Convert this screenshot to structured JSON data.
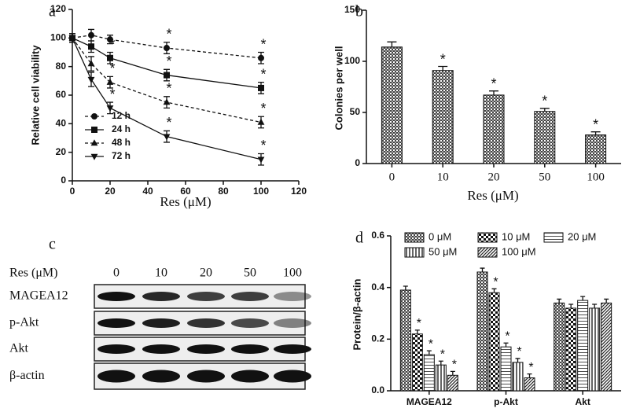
{
  "chart_data": [
    {
      "type": "line",
      "panel_label": "a",
      "x_label": "Res (μM)",
      "y_label": "Relative cell viability",
      "x": [
        0,
        10,
        20,
        50,
        100
      ],
      "xlim": [
        0,
        120
      ],
      "xticks": [
        0,
        20,
        40,
        60,
        80,
        100,
        120
      ],
      "ylim": [
        0,
        120
      ],
      "yticks": [
        0,
        20,
        40,
        60,
        80,
        100,
        120
      ],
      "series": [
        {
          "name": "12 h",
          "color": "#111111",
          "marker": "circle",
          "linestyle": "dashed",
          "values": [
            100,
            102,
            99,
            93,
            86
          ],
          "errors": [
            3,
            4,
            3,
            4,
            4
          ],
          "markers": [
            null,
            null,
            null,
            "*",
            "*"
          ]
        },
        {
          "name": "24 h",
          "color": "#111111",
          "marker": "square",
          "linestyle": "solid",
          "values": [
            100,
            94,
            86,
            74,
            65
          ],
          "errors": [
            3,
            4,
            4,
            4,
            4
          ],
          "markers": [
            null,
            null,
            "*",
            "*",
            "*"
          ]
        },
        {
          "name": "48 h",
          "color": "#111111",
          "marker": "triangle-up",
          "linestyle": "dashed",
          "values": [
            100,
            82,
            69,
            55,
            41
          ],
          "errors": [
            3,
            5,
            4,
            4,
            4
          ],
          "markers": [
            null,
            null,
            "*",
            "*",
            "*"
          ]
        },
        {
          "name": "72 h",
          "color": "#111111",
          "marker": "triangle-down",
          "linestyle": "solid",
          "values": [
            100,
            71,
            51,
            31,
            15
          ],
          "errors": [
            3,
            5,
            4,
            4,
            4
          ],
          "markers": [
            null,
            null,
            "*",
            "*",
            "*"
          ]
        }
      ]
    },
    {
      "type": "bar",
      "panel_label": "b",
      "x_label": "Res (μM)",
      "y_label": "Colonies per well",
      "categories": [
        "0",
        "10",
        "20",
        "50",
        "100"
      ],
      "values": [
        114,
        91,
        67,
        51,
        28
      ],
      "errors": [
        5,
        4,
        4,
        3,
        3
      ],
      "markers": [
        null,
        "*",
        "*",
        "*",
        "*"
      ],
      "color": "#444444",
      "hatch": "check",
      "ylim": [
        0,
        150
      ],
      "yticks": [
        0,
        50,
        100,
        150
      ]
    },
    {
      "type": "grouped-bar",
      "panel_label": "d",
      "y_label": "Protein/β-actin",
      "categories": [
        "MAGEA12",
        "p-Akt",
        "Akt"
      ],
      "ylim": [
        0,
        0.6
      ],
      "yticks": [
        {
          "value": 0,
          "label": "0.0"
        },
        0.2,
        0.4,
        0.6
      ],
      "series": [
        {
          "name": "0 μM",
          "color": "#444444",
          "hatch": "check",
          "values": [
            0.39,
            0.46,
            0.34
          ],
          "errors": [
            0.015,
            0.015,
            0.015
          ],
          "markers": [
            null,
            null,
            null
          ]
        },
        {
          "name": "10 μM",
          "color": "#111111",
          "hatch": "checker-large",
          "values": [
            0.22,
            0.38,
            0.32
          ],
          "errors": [
            0.015,
            0.015,
            0.015
          ],
          "markers": [
            "*",
            "*",
            null
          ]
        },
        {
          "name": "20 μM",
          "color": "#222222",
          "hatch": "horizontal",
          "values": [
            0.14,
            0.17,
            0.35
          ],
          "errors": [
            0.015,
            0.015,
            0.015
          ],
          "markers": [
            "*",
            "*",
            null
          ]
        },
        {
          "name": "50 μM",
          "color": "#222222",
          "hatch": "vertical",
          "values": [
            0.1,
            0.11,
            0.32
          ],
          "errors": [
            0.015,
            0.015,
            0.015
          ],
          "markers": [
            "*",
            "*",
            null
          ]
        },
        {
          "name": "100 μM",
          "color": "#222222",
          "hatch": "diagonal",
          "values": [
            0.06,
            0.05,
            0.34
          ],
          "errors": [
            0.015,
            0.015,
            0.015
          ],
          "markers": [
            "*",
            "*",
            null
          ]
        }
      ]
    }
  ],
  "blot": {
    "panel_label": "c",
    "axis_label": "Res (μM)",
    "lanes": [
      "0",
      "10",
      "20",
      "50",
      "100"
    ],
    "rows": [
      "MAGEA12",
      "p-Akt",
      "Akt",
      "β-actin"
    ]
  }
}
